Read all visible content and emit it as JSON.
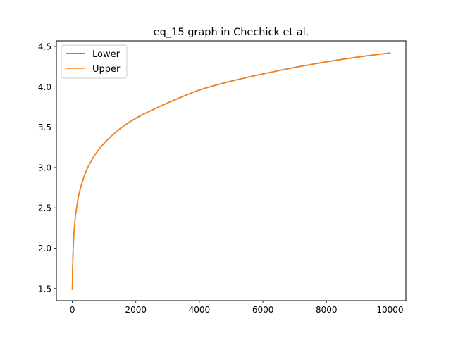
{
  "chart_data": {
    "type": "line",
    "title": "eq_15 graph in Chechick et al.",
    "xlabel": "",
    "ylabel": "",
    "xlim": [
      -500,
      10500
    ],
    "ylim": [
      1.35,
      4.57
    ],
    "xticks": [
      0,
      2000,
      4000,
      6000,
      8000,
      10000
    ],
    "yticks": [
      1.5,
      2.0,
      2.5,
      3.0,
      3.5,
      4.0,
      4.5
    ],
    "xtick_labels": [
      "0",
      "2000",
      "4000",
      "6000",
      "8000",
      "10000"
    ],
    "ytick_labels": [
      "1.5",
      "2.0",
      "2.5",
      "3.0",
      "3.5",
      "4.0",
      "4.5"
    ],
    "grid": false,
    "legend_position": "top-left",
    "series": [
      {
        "name": "Lower",
        "color": "#1f77b4",
        "x": [
          2,
          10,
          25,
          50,
          100,
          200,
          300,
          400,
          500,
          700,
          1000,
          1500,
          2000,
          2500,
          3000,
          4000,
          5000,
          6000,
          7000,
          8000,
          9000,
          10000
        ],
        "y": [
          1.49,
          1.72,
          1.95,
          2.16,
          2.4,
          2.65,
          2.8,
          2.92,
          3.01,
          3.15,
          3.3,
          3.48,
          3.61,
          3.71,
          3.8,
          3.96,
          4.07,
          4.16,
          4.24,
          4.31,
          4.37,
          4.42
        ]
      },
      {
        "name": "Upper",
        "color": "#ff7f0e",
        "x": [
          2,
          10,
          25,
          50,
          100,
          200,
          300,
          400,
          500,
          700,
          1000,
          1500,
          2000,
          2500,
          3000,
          4000,
          5000,
          6000,
          7000,
          8000,
          9000,
          10000
        ],
        "y": [
          1.49,
          1.72,
          1.95,
          2.16,
          2.4,
          2.65,
          2.8,
          2.92,
          3.01,
          3.15,
          3.3,
          3.48,
          3.61,
          3.71,
          3.8,
          3.96,
          4.07,
          4.16,
          4.24,
          4.31,
          4.37,
          4.42
        ]
      }
    ]
  }
}
